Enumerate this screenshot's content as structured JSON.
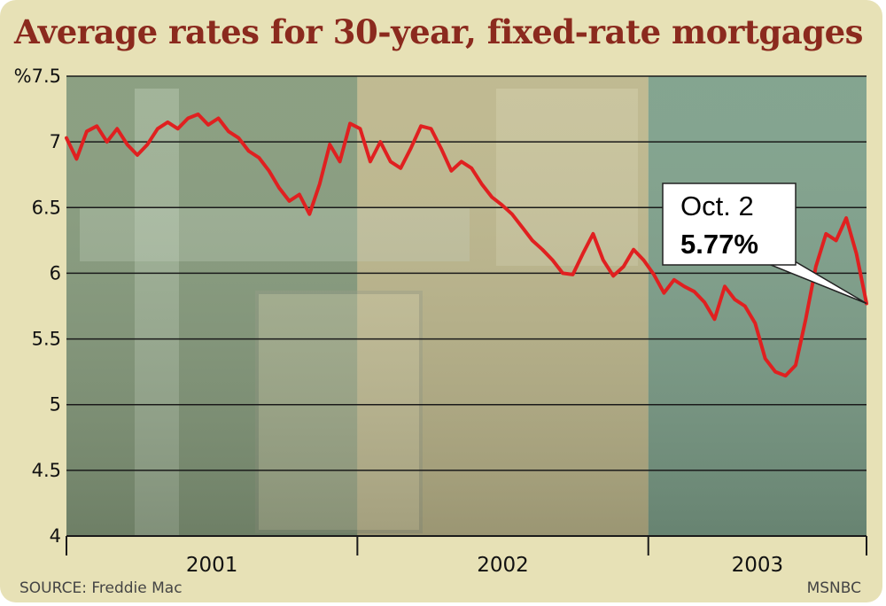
{
  "title": "Average rates for 30-year, fixed-rate mortgages",
  "source": "SOURCE: Freddie Mac",
  "credit": "MSNBC",
  "colors": {
    "line": "#e02020",
    "title": "#8b2a1e",
    "frame": "#e7e1b6",
    "band_2001": "#869b7c",
    "band_2002": "#bdb78c",
    "band_2003": "#7ea08a"
  },
  "chart_data": {
    "type": "line",
    "title": "Average rates for 30-year, fixed-rate mortgages",
    "ylabel": "%",
    "ylim": [
      4,
      7.5
    ],
    "yticks": [
      4,
      4.5,
      5,
      5.5,
      6,
      6.5,
      7,
      7.5
    ],
    "ytick_labels": [
      "4",
      "4.5",
      "5",
      "5.5",
      "6",
      "6.5",
      "7",
      "%7.5"
    ],
    "xlim": [
      2001,
      2003.75
    ],
    "year_labels": [
      "2001",
      "2002",
      "2003"
    ],
    "grid": true,
    "annotation": {
      "date": "Oct. 2",
      "value": "5.77%"
    },
    "series": [
      {
        "values": [
          7.03,
          6.87,
          7.08,
          7.12,
          7.0,
          7.1,
          6.98,
          6.9,
          6.98,
          7.1,
          7.15,
          7.1,
          7.18,
          7.21,
          7.13,
          7.18,
          7.08,
          7.03,
          6.93,
          6.88,
          6.78,
          6.65,
          6.55,
          6.6,
          6.45,
          6.68,
          6.98,
          6.85,
          7.14,
          7.1,
          6.85,
          7.0,
          6.85,
          6.8,
          6.95,
          7.12,
          7.1,
          6.95,
          6.78,
          6.85,
          6.8,
          6.68,
          6.58,
          6.52,
          6.45,
          6.35,
          6.25,
          6.18,
          6.1,
          6.0,
          5.99,
          6.15,
          6.3,
          6.1,
          5.98,
          6.05,
          6.18,
          6.1,
          5.99,
          5.85,
          5.95,
          5.9,
          5.86,
          5.78,
          5.65,
          5.9,
          5.8,
          5.75,
          5.62,
          5.35,
          5.25,
          5.22,
          5.3,
          5.65,
          6.05,
          6.3,
          6.25,
          6.42,
          6.15,
          5.77
        ]
      }
    ]
  }
}
